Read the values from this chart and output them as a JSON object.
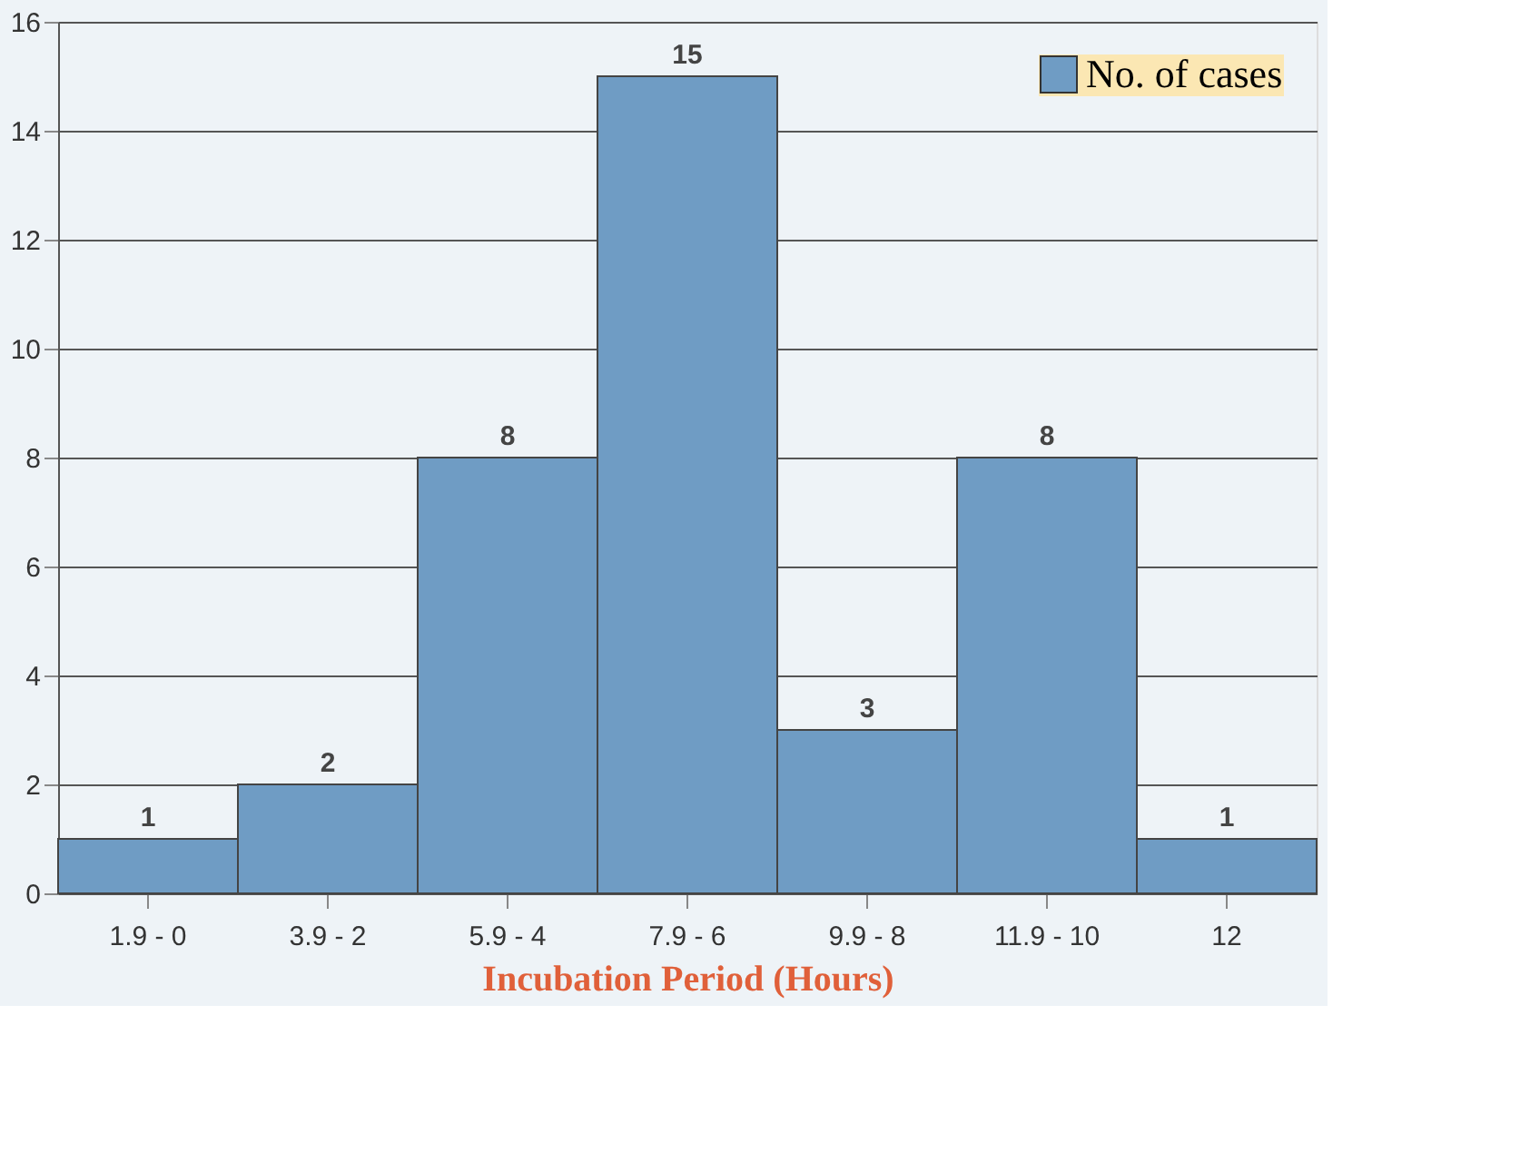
{
  "chart_data": {
    "type": "bar",
    "xlabel": "Incubation Period (Hours)",
    "categories": [
      "1.9 - 0",
      "3.9 - 2",
      "5.9 - 4",
      "7.9 - 6",
      "9.9 - 8",
      "11.9  - 10",
      "12"
    ],
    "series": [
      {
        "name": "No. of cases",
        "color": "#6f9cc4",
        "values": [
          1,
          2,
          8,
          15,
          3,
          8,
          1
        ]
      }
    ],
    "ylim": [
      0,
      16
    ],
    "yticks": [
      0,
      2,
      4,
      6,
      8,
      10,
      12,
      14,
      16
    ],
    "grid": "y",
    "legend": "top right",
    "data_labels": true
  }
}
